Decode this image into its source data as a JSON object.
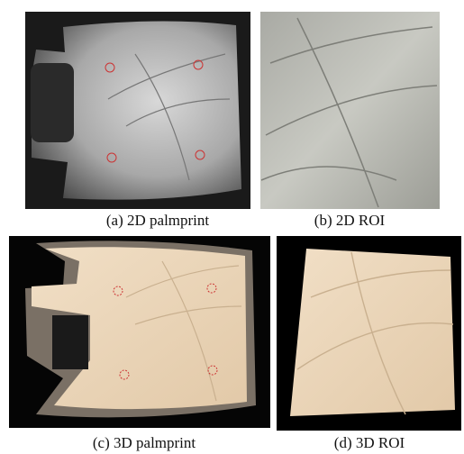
{
  "figure": {
    "panels": [
      {
        "caption": "(a) 2D palmprint"
      },
      {
        "caption": "(b) 2D ROI"
      },
      {
        "caption": "(c) 3D palmprint"
      },
      {
        "caption": "(d) 3D ROI"
      }
    ]
  }
}
